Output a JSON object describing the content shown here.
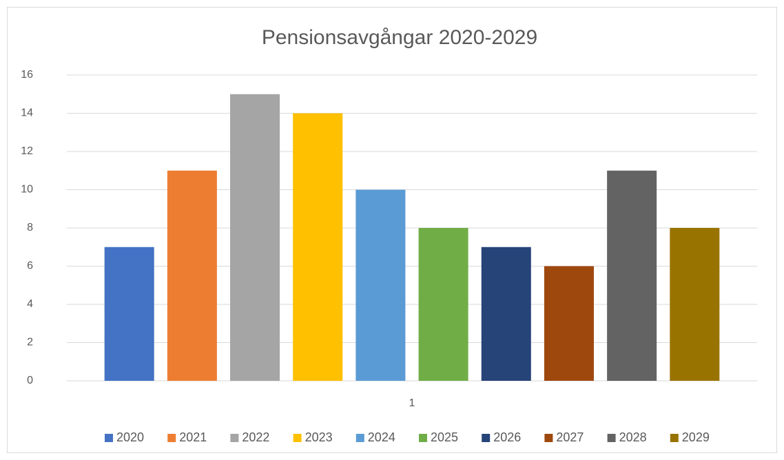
{
  "chart_data": {
    "type": "bar",
    "title": "Pensionsavgångar 2020-2029",
    "categories": [
      "1"
    ],
    "series": [
      {
        "name": "2020",
        "color": "#4472c4",
        "values": [
          7
        ]
      },
      {
        "name": "2021",
        "color": "#ed7d31",
        "values": [
          11
        ]
      },
      {
        "name": "2022",
        "color": "#a5a5a5",
        "values": [
          15
        ]
      },
      {
        "name": "2023",
        "color": "#ffc000",
        "values": [
          14
        ]
      },
      {
        "name": "2024",
        "color": "#5b9bd5",
        "values": [
          10
        ]
      },
      {
        "name": "2025",
        "color": "#70ad47",
        "values": [
          8
        ]
      },
      {
        "name": "2026",
        "color": "#264478",
        "values": [
          7
        ]
      },
      {
        "name": "2027",
        "color": "#9e480e",
        "values": [
          6
        ]
      },
      {
        "name": "2028",
        "color": "#636363",
        "values": [
          11
        ]
      },
      {
        "name": "2029",
        "color": "#997300",
        "values": [
          8
        ]
      }
    ],
    "ylim": [
      0,
      16
    ],
    "yticks": [
      0,
      2,
      4,
      6,
      8,
      10,
      12,
      14,
      16
    ],
    "grid": true,
    "legend": "bottom"
  }
}
